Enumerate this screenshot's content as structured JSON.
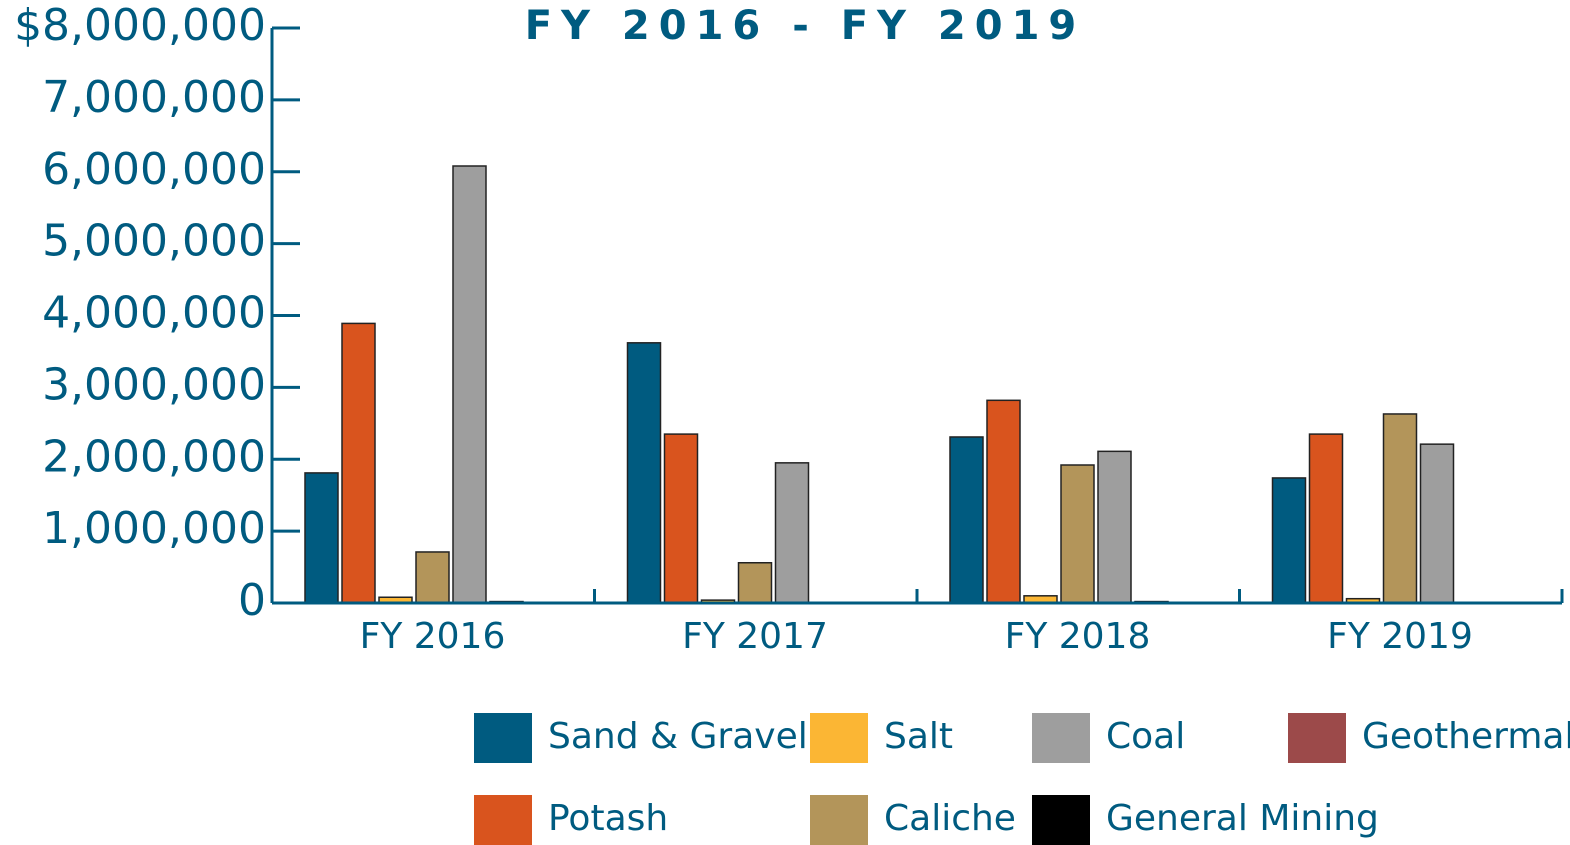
{
  "chart_data": {
    "type": "bar",
    "title": "FY 2016 - FY 2019",
    "categories": [
      "FY 2016",
      "FY 2017",
      "FY 2018",
      "FY 2019"
    ],
    "series": [
      {
        "name": "Sand & Gravel",
        "color": "#005b80",
        "values": [
          1810000,
          3620000,
          2310000,
          1740000
        ]
      },
      {
        "name": "Potash",
        "color": "#d9541e",
        "values": [
          3890000,
          2350000,
          2820000,
          2350000
        ]
      },
      {
        "name": "Salt",
        "color": "#fbb634",
        "values": [
          80000,
          40000,
          100000,
          60000
        ]
      },
      {
        "name": "Caliche",
        "color": "#b3955a",
        "values": [
          710000,
          560000,
          1920000,
          2630000
        ]
      },
      {
        "name": "Coal",
        "color": "#9e9e9e",
        "values": [
          6080000,
          1950000,
          2110000,
          2210000
        ]
      },
      {
        "name": "General Mining",
        "color": "#000000",
        "values": [
          20000,
          5000,
          20000,
          10000
        ]
      },
      {
        "name": "Geothermal",
        "color": "#9c4a4a",
        "values": [
          5000,
          0,
          0,
          0
        ]
      }
    ],
    "ylim": [
      0,
      8000000
    ],
    "yticks": [
      0,
      {
        "value": 1000000,
        "label": "1,000,000"
      },
      {
        "value": 2000000,
        "label": "2,000,000"
      },
      {
        "value": 3000000,
        "label": "3,000,000"
      },
      {
        "value": 4000000,
        "label": "4,000,000"
      },
      {
        "value": 5000000,
        "label": "5,000,000"
      },
      {
        "value": 6000000,
        "label": "6,000,000"
      },
      {
        "value": 7000000,
        "label": "7,000,000"
      },
      {
        "value": 8000000,
        "label": "$8,000,000"
      }
    ],
    "grid": false
  }
}
